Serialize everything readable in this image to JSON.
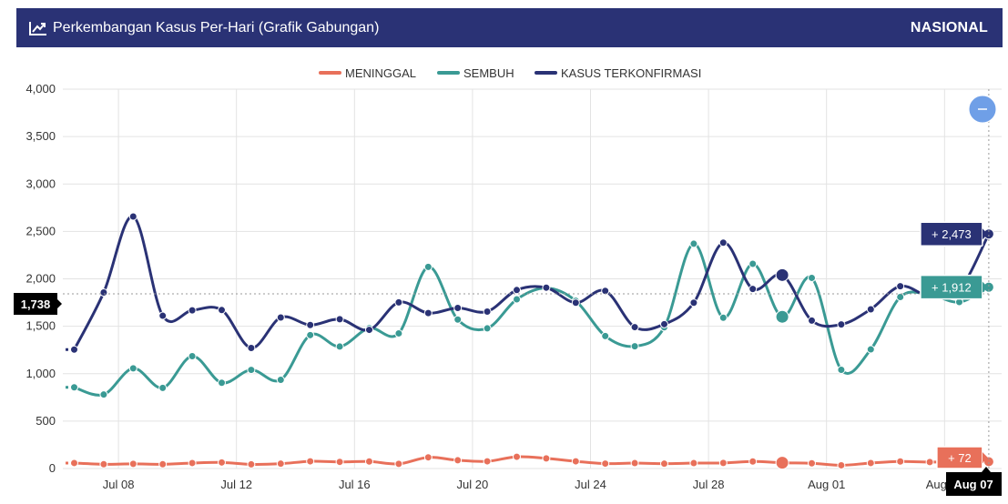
{
  "header": {
    "title": "Perkembangan Kasus Per-Hari (Grafik Gabungan)",
    "scope": "NASIONAL",
    "icon": "line-chart-icon"
  },
  "chart_data": {
    "type": "line",
    "x": [
      "Jul 07",
      "Jul 08",
      "Jul 09",
      "Jul 10",
      "Jul 11",
      "Jul 12",
      "Jul 13",
      "Jul 14",
      "Jul 15",
      "Jul 16",
      "Jul 17",
      "Jul 18",
      "Jul 19",
      "Jul 20",
      "Jul 21",
      "Jul 22",
      "Jul 23",
      "Jul 24",
      "Jul 25",
      "Jul 26",
      "Jul 27",
      "Jul 28",
      "Jul 29",
      "Jul 30",
      "Jul 31",
      "Aug 01",
      "Aug 02",
      "Aug 03",
      "Aug 04",
      "Aug 05",
      "Aug 06",
      "Aug 07"
    ],
    "x_tick_labels": [
      "Jul 08",
      "Jul 12",
      "Jul 16",
      "Jul 20",
      "Jul 24",
      "Jul 28",
      "Aug 01",
      "Aug 05"
    ],
    "series": [
      {
        "name": "MENINGGAL",
        "color": "#e8705a",
        "values": [
          58,
          45,
          49,
          45,
          58,
          64,
          44,
          51,
          76,
          70,
          74,
          49,
          118,
          87,
          76,
          124,
          107,
          76,
          52,
          57,
          51,
          57,
          59,
          74,
          61,
          55,
          34,
          58,
          74,
          68,
          70,
          72
        ]
      },
      {
        "name": "SEMBUH",
        "color": "#3a9a94",
        "values": [
          856,
          780,
          1056,
          850,
          1185,
          904,
          1040,
          935,
          1407,
          1286,
          1480,
          1425,
          2126,
          1571,
          1478,
          1784,
          1903,
          1768,
          1397,
          1289,
          1489,
          2370,
          1590,
          2158,
          1600,
          2010,
          1041,
          1256,
          1808,
          1833,
          1755,
          1912
        ]
      },
      {
        "name": "KASUS TERKONFIRMASI",
        "color": "#2a3275",
        "values": [
          1254,
          1856,
          2657,
          1611,
          1668,
          1671,
          1271,
          1592,
          1513,
          1574,
          1462,
          1752,
          1639,
          1693,
          1655,
          1882,
          1907,
          1748,
          1873,
          1491,
          1522,
          1748,
          2381,
          1893,
          2040,
          1560,
          1519,
          1679,
          1922,
          1815,
          1882,
          2473
        ]
      }
    ],
    "ylim": [
      0,
      4000
    ],
    "y_tick_labels": [
      "0",
      "500",
      "1,000",
      "1,500",
      "2,000",
      "2,500",
      "3,000",
      "3,500",
      "4,000"
    ],
    "grid": true,
    "legend_position": "top-center",
    "crosshair": {
      "y_label": "1,738",
      "x_label": "Aug 07"
    },
    "tooltips": [
      {
        "series": "KASUS TERKONFIRMASI",
        "text": "+ 2,473"
      },
      {
        "series": "SEMBUH",
        "text": "+ 1,912"
      },
      {
        "series": "MENINGGAL",
        "text": "+ 72"
      }
    ],
    "highlight_x": "Jul 31",
    "reset_button_icon": "minus-icon"
  }
}
